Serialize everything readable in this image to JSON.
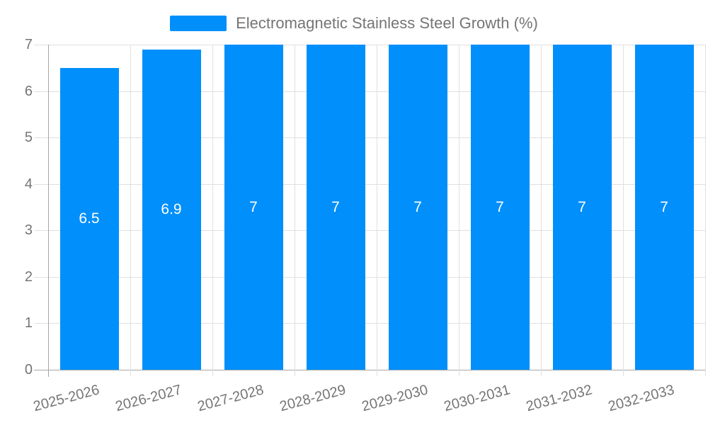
{
  "chart_data": {
    "type": "bar",
    "title": "Electromagnetic Stainless Steel Growth (%)",
    "legend": {
      "position": "top",
      "label": "Electromagnetic Stainless Steel Growth (%)",
      "marker_color": "#008FFB"
    },
    "categories": [
      "2025-2026",
      "2026-2027",
      "2027-2028",
      "2028-2029",
      "2029-2030",
      "2030-2031",
      "2031-2032",
      "2032-2033"
    ],
    "values": [
      6.5,
      6.9,
      7,
      7,
      7,
      7,
      7,
      7
    ],
    "data_labels": [
      "6.5",
      "6.9",
      "7",
      "7",
      "7",
      "7",
      "7",
      "7"
    ],
    "xlabel": "",
    "ylabel": "",
    "ylim": [
      0,
      7
    ],
    "yticks": [
      0,
      1,
      2,
      3,
      4,
      5,
      6,
      7
    ],
    "grid": true,
    "xaxis_label_rotation_deg": -15,
    "colors": {
      "bar": "#008FFB",
      "gridline": "#e0e0e0",
      "axis_line": "#a6a6a6",
      "tick_text": "#757575",
      "data_label_text": "#ffffff",
      "background": "#ffffff"
    }
  }
}
